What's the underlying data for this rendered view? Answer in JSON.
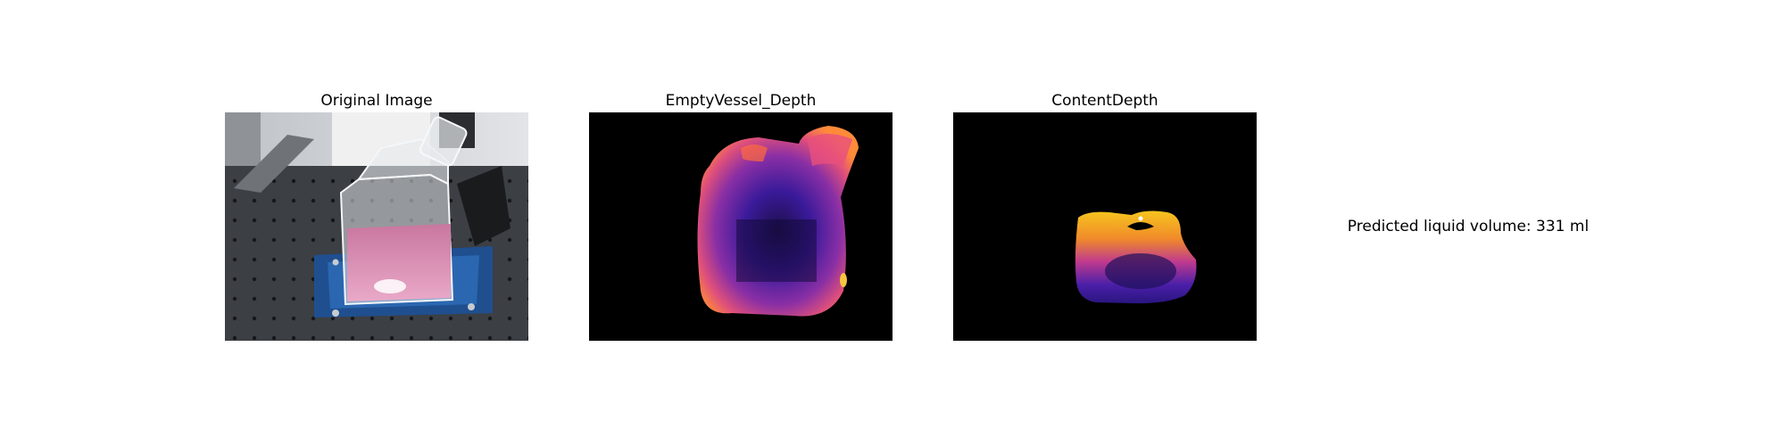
{
  "panels": [
    {
      "title": "Original Image",
      "picture": "photo-of-culture-flask-with-pink-liquid-on-blue-holder"
    },
    {
      "title": "EmptyVessel_Depth",
      "picture": "depth-map-empty-vessel-plasma-colormap"
    },
    {
      "title": "ContentDepth",
      "picture": "depth-map-liquid-content-plasma-colormap"
    }
  ],
  "result": {
    "text": "Predicted liquid volume: 331 ml"
  },
  "colors": {
    "background": "#ffffff",
    "depth_background": "#000000",
    "depth_low": "#2a1580",
    "depth_mid": "#c23a8a",
    "depth_high": "#f5c21a",
    "holder_blue": "#1f4f8f",
    "liquid_pink": "#d98ab3"
  }
}
